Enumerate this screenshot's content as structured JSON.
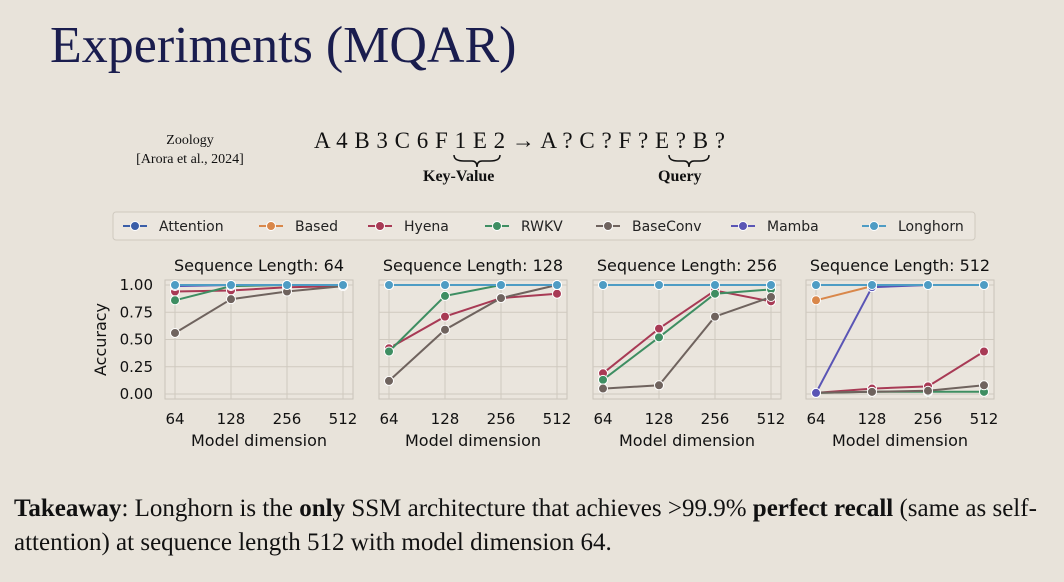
{
  "slide": {
    "title": "Experiments (MQAR)",
    "citation_line1": "Zoology",
    "citation_line2": "[Arora et al., 2024]",
    "sequence": "A 4 B 3 C 6 F 1 E 2 → A ? C ? F ? E ? B ?",
    "key_value_label": "Key-Value",
    "query_label": "Query",
    "takeaway": {
      "lead": "Takeaway",
      "part1": ": Longhorn is the ",
      "only": "only",
      "part2": " SSM architecture that achieves >99.9% ",
      "perfect_recall": "perfect recall",
      "part3": " (same as self-attention) at sequence length 512 with model dimension 64."
    }
  },
  "chart_data": {
    "type": "line",
    "legend": [
      "Attention",
      "Based",
      "Hyena",
      "RWKV",
      "BaseConv",
      "Mamba",
      "Longhorn"
    ],
    "legend_placement": "top",
    "colors": {
      "Attention": "#3a5ea8",
      "Based": "#d9874a",
      "Hyena": "#a83a55",
      "RWKV": "#3e8e62",
      "BaseConv": "#6f635e",
      "Mamba": "#5a55b5",
      "Longhorn": "#4e9cc4"
    },
    "ylabel": "Accuracy",
    "xlabel": "Model dimension",
    "x": [
      "64",
      "128",
      "256",
      "512"
    ],
    "yticks": [
      "1.00",
      "0.75",
      "0.50",
      "0.25",
      "0.00"
    ],
    "ylim": [
      0,
      1
    ],
    "grid": true,
    "panels": [
      {
        "title": "Sequence Length: 64",
        "series": [
          {
            "name": "Attention",
            "values": [
              1.0,
              1.0,
              1.0,
              1.0
            ]
          },
          {
            "name": "Based",
            "values": [
              1.0,
              1.0,
              1.0,
              1.0
            ]
          },
          {
            "name": "Hyena",
            "values": [
              0.94,
              0.95,
              0.98,
              0.99
            ]
          },
          {
            "name": "RWKV",
            "values": [
              0.86,
              0.99,
              1.0,
              1.0
            ]
          },
          {
            "name": "BaseConv",
            "values": [
              0.56,
              0.87,
              0.94,
              0.99
            ]
          },
          {
            "name": "Mamba",
            "values": [
              0.99,
              1.0,
              1.0,
              1.0
            ]
          },
          {
            "name": "Longhorn",
            "values": [
              1.0,
              1.0,
              1.0,
              1.0
            ]
          }
        ]
      },
      {
        "title": "Sequence Length: 128",
        "series": [
          {
            "name": "Attention",
            "values": [
              1.0,
              1.0,
              1.0,
              1.0
            ]
          },
          {
            "name": "Based",
            "values": [
              1.0,
              1.0,
              1.0,
              1.0
            ]
          },
          {
            "name": "Hyena",
            "values": [
              0.42,
              0.71,
              0.88,
              0.92
            ]
          },
          {
            "name": "RWKV",
            "values": [
              0.39,
              0.9,
              1.0,
              1.0
            ]
          },
          {
            "name": "BaseConv",
            "values": [
              0.12,
              0.59,
              0.88,
              1.0
            ]
          },
          {
            "name": "Mamba",
            "values": [
              1.0,
              1.0,
              1.0,
              1.0
            ]
          },
          {
            "name": "Longhorn",
            "values": [
              1.0,
              1.0,
              1.0,
              1.0
            ]
          }
        ]
      },
      {
        "title": "Sequence Length: 256",
        "series": [
          {
            "name": "Attention",
            "values": [
              1.0,
              1.0,
              1.0,
              1.0
            ]
          },
          {
            "name": "Based",
            "values": [
              1.0,
              1.0,
              1.0,
              1.0
            ]
          },
          {
            "name": "Hyena",
            "values": [
              0.19,
              0.6,
              0.95,
              0.85
            ]
          },
          {
            "name": "RWKV",
            "values": [
              0.13,
              0.52,
              0.92,
              0.96
            ]
          },
          {
            "name": "BaseConv",
            "values": [
              0.05,
              0.08,
              0.71,
              0.89
            ]
          },
          {
            "name": "Mamba",
            "values": [
              1.0,
              1.0,
              1.0,
              1.0
            ]
          },
          {
            "name": "Longhorn",
            "values": [
              1.0,
              1.0,
              1.0,
              1.0
            ]
          }
        ]
      },
      {
        "title": "Sequence Length: 512",
        "series": [
          {
            "name": "Attention",
            "values": [
              1.0,
              1.0,
              1.0,
              1.0
            ]
          },
          {
            "name": "Based",
            "values": [
              0.86,
              0.99,
              1.0,
              1.0
            ]
          },
          {
            "name": "Hyena",
            "values": [
              0.01,
              0.05,
              0.07,
              0.39
            ]
          },
          {
            "name": "RWKV",
            "values": [
              0.01,
              0.02,
              0.02,
              0.02
            ]
          },
          {
            "name": "BaseConv",
            "values": [
              0.01,
              0.02,
              0.03,
              0.08
            ]
          },
          {
            "name": "Mamba",
            "values": [
              0.01,
              0.98,
              1.0,
              1.0
            ]
          },
          {
            "name": "Longhorn",
            "values": [
              1.0,
              1.0,
              1.0,
              1.0
            ]
          }
        ]
      }
    ]
  }
}
